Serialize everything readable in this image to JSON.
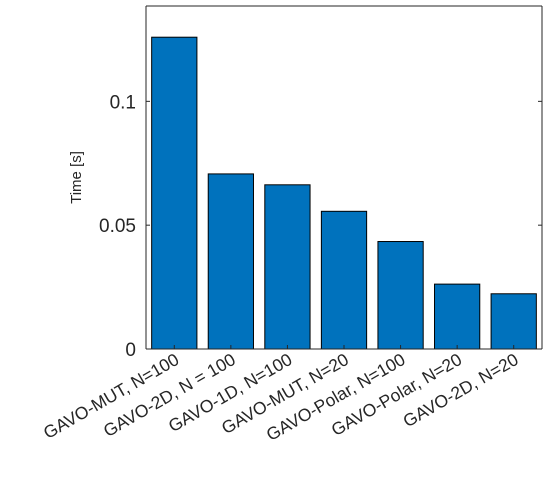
{
  "chart_data": {
    "type": "bar",
    "title": "",
    "xlabel": "",
    "ylabel": "Time [s]",
    "categories": [
      "GAVO-MUT, N=100",
      "GAVO-2D, N = 100",
      "GAVO-1D, N=100",
      "GAVO-MUT, N=20",
      "GAVO-Polar, N=100",
      "GAVO-Polar, N=20",
      "GAVO-2D, N=20"
    ],
    "values": [
      0.1259,
      0.0707,
      0.0663,
      0.0556,
      0.0434,
      0.0262,
      0.0223
    ],
    "ylim": [
      0,
      0.1385
    ],
    "yticks": [
      0,
      0.05,
      0.1
    ],
    "ytick_labels": [
      "0",
      "0.05",
      "0.1"
    ],
    "bar_color": "#0072BD",
    "grid": false,
    "legend": "none"
  }
}
